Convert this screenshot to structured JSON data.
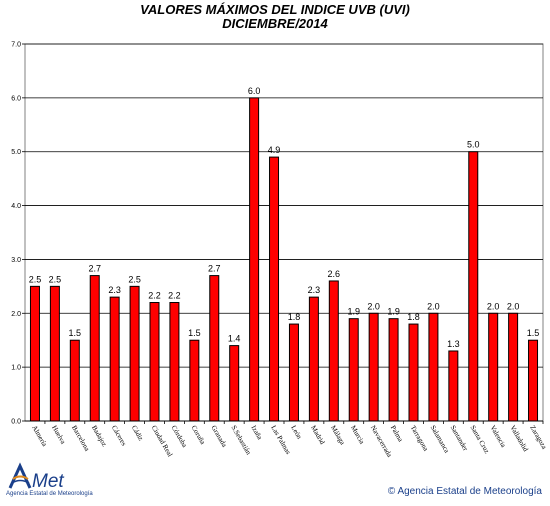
{
  "chart_data": {
    "type": "bar",
    "title": "VALORES MÁXIMOS DEL INDICE UVB (UVI)",
    "subtitle": "DICIEMBRE/2014",
    "categories": [
      "Almería",
      "Huelva",
      "Barcelona",
      "Badajoz",
      "Cáceres",
      "Cádiz",
      "Ciudad Real",
      "Córdoba",
      "Coruña",
      "Granada",
      "S.Sebastián",
      "Izaña",
      "Las Palmas",
      "León",
      "Madrid",
      "Málaga",
      "Murcia",
      "Navacerrada",
      "Palma",
      "Tarragona",
      "Salamanca",
      "Santander",
      "Santa Cruz",
      "Valencia",
      "Valladolid",
      "Zaragoza"
    ],
    "values": [
      2.5,
      2.5,
      1.5,
      2.7,
      2.3,
      2.5,
      2.2,
      2.2,
      1.5,
      2.7,
      1.4,
      6.0,
      4.9,
      1.8,
      2.3,
      2.6,
      1.9,
      2.0,
      1.9,
      1.8,
      2.0,
      1.3,
      5.0,
      2.0,
      2.0,
      1.5
    ],
    "value_labels": [
      "2.5",
      "2.5",
      "1.5",
      "2.7",
      "2.3",
      "2.5",
      "2.2",
      "2.2",
      "1.5",
      "2.7",
      "1.4",
      "6.0",
      "4.9",
      "1.8",
      "2.3",
      "2.6",
      "1.9",
      "2.0",
      "1.9",
      "1.8",
      "2.0",
      "1.3",
      "5.0",
      "2.0",
      "2.0",
      "1.5"
    ],
    "ylim": [
      0,
      7
    ],
    "yticks": [
      "0.0",
      "1.0",
      "2.0",
      "3.0",
      "4.0",
      "5.0",
      "6.0",
      "7.0"
    ],
    "grid": true,
    "bar_color": "#ff0000"
  },
  "branding": {
    "logo_text": "AEMet",
    "logo_subtitle": "Agencia Estatal de Meteorología",
    "footer": "© Agencia Estatal de Meteorología"
  }
}
